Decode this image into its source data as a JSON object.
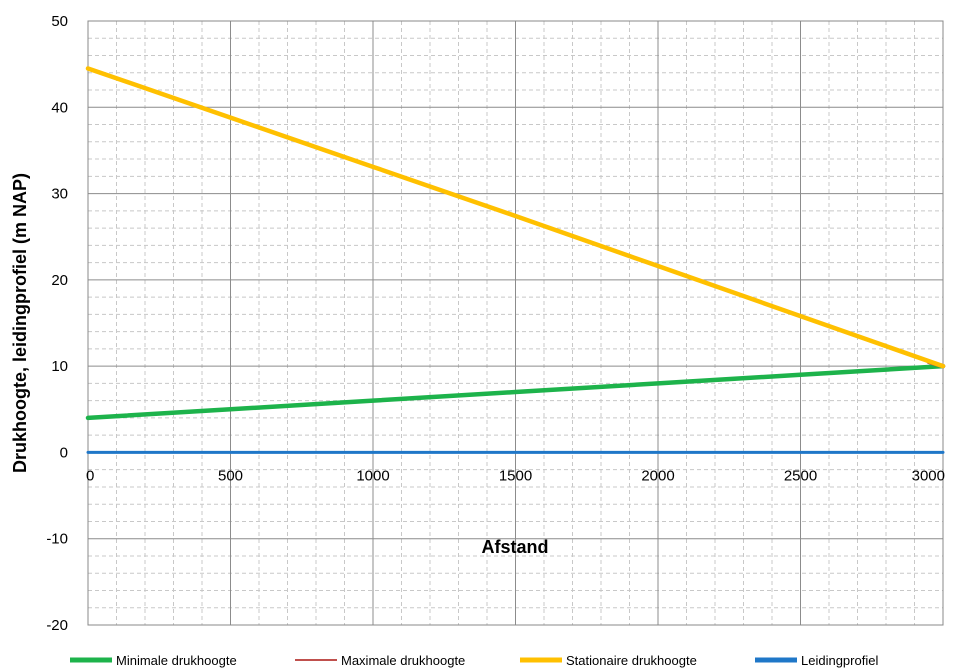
{
  "chart_data": {
    "type": "line",
    "title": "",
    "xlabel": "Afstand",
    "ylabel": "Drukhoogte, leidingprofiel (m NAP)",
    "xlim": [
      0,
      3000
    ],
    "ylim": [
      -20,
      50
    ],
    "x_ticks": [
      0,
      500,
      1000,
      1500,
      2000,
      2500,
      3000
    ],
    "y_ticks": [
      -20,
      -10,
      0,
      10,
      20,
      30,
      40,
      50
    ],
    "x_tick_labels": [
      "0",
      "500",
      "1000",
      "1500",
      "2000",
      "2500",
      "3000"
    ],
    "y_tick_labels": [
      "-20",
      "-10",
      "0",
      "10",
      "20",
      "30",
      "40",
      "50"
    ],
    "grid": true,
    "minor_grid": true,
    "legend_position": "bottom",
    "series": [
      {
        "name": "Minimale drukhoogte",
        "color": "#1db34b",
        "x": [
          0,
          500,
          1000,
          1500,
          2000,
          2500,
          3000
        ],
        "y": [
          4.0,
          5.0,
          6.0,
          7.0,
          8.0,
          9.0,
          10.0
        ]
      },
      {
        "name": "Maximale drukhoogte",
        "color": "#c0504d",
        "x": [
          2950,
          3000
        ],
        "y": [
          10.5,
          10.0
        ]
      },
      {
        "name": "Stationaire drukhoogte",
        "color": "#ffc000",
        "x": [
          0,
          500,
          1000,
          1500,
          2000,
          2500,
          3000
        ],
        "y": [
          44.5,
          38.8,
          33.1,
          27.4,
          21.6,
          15.8,
          10.0
        ]
      },
      {
        "name": "Leidingprofiel",
        "color": "#1f77c8",
        "x": [
          0,
          3000
        ],
        "y": [
          0,
          0
        ]
      }
    ]
  }
}
